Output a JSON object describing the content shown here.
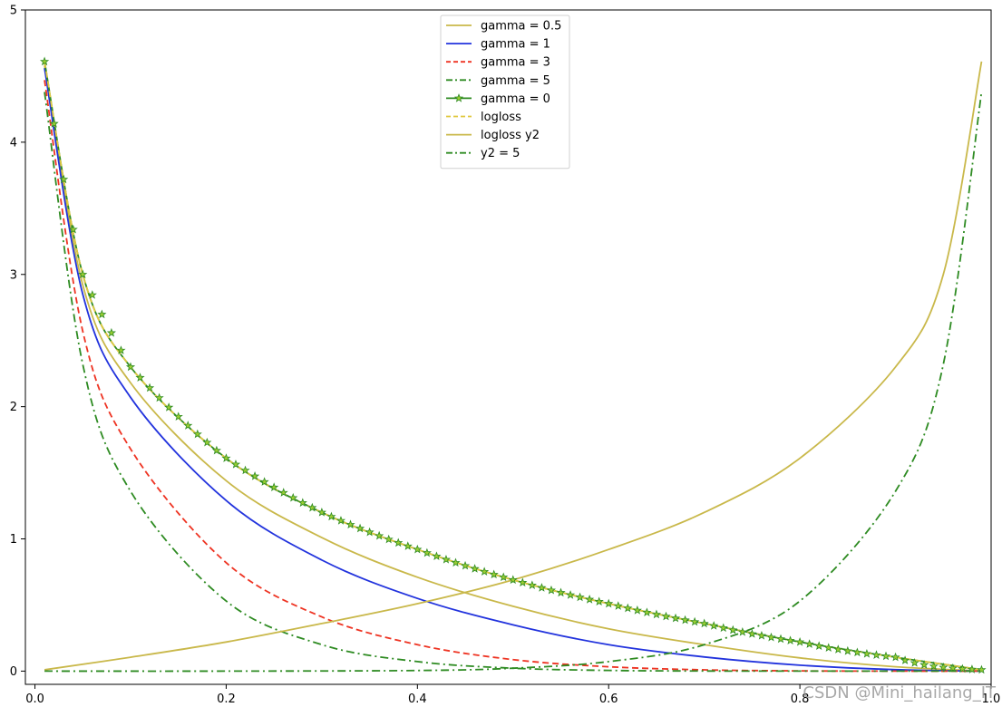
{
  "chart_data": {
    "type": "line",
    "title": "",
    "xlabel": "",
    "ylabel": "",
    "xlim": [
      -0.01,
      1.0
    ],
    "ylim": [
      -0.1,
      5.0
    ],
    "xticks": [
      0.0,
      0.2,
      0.4,
      0.6,
      0.8,
      1.0
    ],
    "xtick_labels": [
      "0.0",
      "0.2",
      "0.4",
      "0.6",
      "0.8",
      "1.0"
    ],
    "yticks": [
      0,
      1,
      2,
      3,
      4,
      5
    ],
    "ytick_labels": [
      "0",
      "1",
      "2",
      "3",
      "4",
      "5"
    ],
    "grid": false,
    "legend_position": "top-center",
    "x_range_of_samples": [
      0.01,
      0.99
    ],
    "series": [
      {
        "name": "gamma = 0.5",
        "color": "#c9b84a",
        "style": "solid",
        "marker": "none",
        "points": [
          [
            0.01,
            4.58
          ],
          [
            0.05,
            2.92
          ],
          [
            0.1,
            2.18
          ],
          [
            0.2,
            1.44
          ],
          [
            0.3,
            1.01
          ],
          [
            0.4,
            0.71
          ],
          [
            0.5,
            0.49
          ],
          [
            0.6,
            0.32
          ],
          [
            0.7,
            0.2
          ],
          [
            0.8,
            0.1
          ],
          [
            0.9,
            0.033
          ],
          [
            0.99,
            0.001
          ]
        ]
      },
      {
        "name": "gamma = 1",
        "color": "#2233dd",
        "style": "solid",
        "marker": "none",
        "points": [
          [
            0.01,
            4.56
          ],
          [
            0.05,
            2.85
          ],
          [
            0.1,
            2.07
          ],
          [
            0.2,
            1.29
          ],
          [
            0.3,
            0.84
          ],
          [
            0.4,
            0.55
          ],
          [
            0.5,
            0.35
          ],
          [
            0.6,
            0.2
          ],
          [
            0.7,
            0.107
          ],
          [
            0.8,
            0.045
          ],
          [
            0.9,
            0.011
          ],
          [
            0.99,
            0.0001
          ]
        ]
      },
      {
        "name": "gamma = 3",
        "color": "#ee3322",
        "style": "dashed",
        "marker": "none",
        "points": [
          [
            0.01,
            4.47
          ],
          [
            0.05,
            2.57
          ],
          [
            0.1,
            1.68
          ],
          [
            0.2,
            0.82
          ],
          [
            0.3,
            0.41
          ],
          [
            0.4,
            0.2
          ],
          [
            0.5,
            0.087
          ],
          [
            0.6,
            0.033
          ],
          [
            0.7,
            0.0096
          ],
          [
            0.8,
            0.0018
          ],
          [
            0.9,
            0.0001
          ],
          [
            0.99,
            0.0
          ]
        ]
      },
      {
        "name": "gamma = 5",
        "color": "#2e8b22",
        "style": "dashdot",
        "marker": "none",
        "points": [
          [
            0.01,
            4.38
          ],
          [
            0.05,
            2.32
          ],
          [
            0.1,
            1.36
          ],
          [
            0.2,
            0.53
          ],
          [
            0.3,
            0.2
          ],
          [
            0.4,
            0.072
          ],
          [
            0.5,
            0.022
          ],
          [
            0.6,
            0.0052
          ],
          [
            0.7,
            0.0009
          ],
          [
            0.8,
            0.0001
          ],
          [
            0.9,
            0.0
          ],
          [
            0.99,
            0.0
          ]
        ]
      },
      {
        "name": "gamma = 0",
        "color": "#2e8b22",
        "style": "solid",
        "marker": "star",
        "marker_face": "#9acd32",
        "points": [
          [
            0.01,
            4.61
          ],
          [
            0.05,
            3.0
          ],
          [
            0.1,
            2.3
          ],
          [
            0.2,
            1.61
          ],
          [
            0.3,
            1.2
          ],
          [
            0.4,
            0.92
          ],
          [
            0.5,
            0.69
          ],
          [
            0.6,
            0.51
          ],
          [
            0.7,
            0.36
          ],
          [
            0.8,
            0.22
          ],
          [
            0.9,
            0.105
          ],
          [
            0.99,
            0.01
          ]
        ]
      },
      {
        "name": "logloss",
        "color": "#e0c840",
        "style": "dashed",
        "marker": "none",
        "points": [
          [
            0.01,
            4.61
          ],
          [
            0.05,
            3.0
          ],
          [
            0.1,
            2.3
          ],
          [
            0.2,
            1.61
          ],
          [
            0.3,
            1.2
          ],
          [
            0.4,
            0.92
          ],
          [
            0.5,
            0.69
          ],
          [
            0.6,
            0.51
          ],
          [
            0.7,
            0.36
          ],
          [
            0.8,
            0.22
          ],
          [
            0.9,
            0.105
          ],
          [
            0.99,
            0.01
          ]
        ]
      },
      {
        "name": "logloss y2",
        "color": "#c9b84a",
        "style": "solid",
        "marker": "none",
        "points": [
          [
            0.01,
            0.01
          ],
          [
            0.1,
            0.105
          ],
          [
            0.2,
            0.22
          ],
          [
            0.3,
            0.36
          ],
          [
            0.4,
            0.51
          ],
          [
            0.5,
            0.69
          ],
          [
            0.6,
            0.92
          ],
          [
            0.7,
            1.2
          ],
          [
            0.8,
            1.61
          ],
          [
            0.9,
            2.3
          ],
          [
            0.95,
            3.0
          ],
          [
            0.99,
            4.61
          ]
        ]
      },
      {
        "name": "y2 = 5",
        "color": "#2e8b22",
        "style": "dashdot",
        "marker": "none",
        "points": [
          [
            0.01,
            0.0
          ],
          [
            0.2,
            0.0
          ],
          [
            0.4,
            0.0047
          ],
          [
            0.5,
            0.022
          ],
          [
            0.6,
            0.072
          ],
          [
            0.7,
            0.2
          ],
          [
            0.8,
            0.53
          ],
          [
            0.9,
            1.36
          ],
          [
            0.95,
            2.32
          ],
          [
            0.99,
            4.38
          ]
        ]
      }
    ]
  },
  "watermark": "CSDN @Mini_hailang_IT"
}
